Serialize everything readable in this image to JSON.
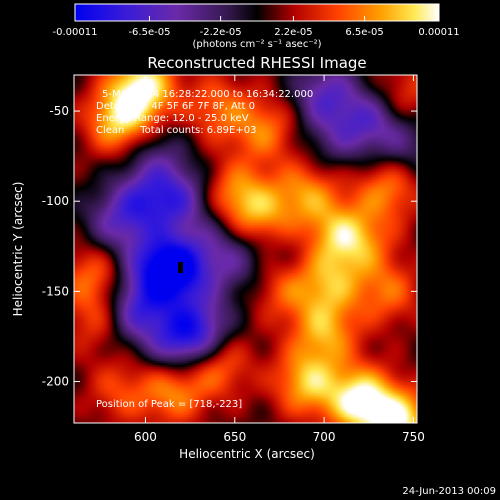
{
  "chart_data": {
    "type": "heatmap",
    "title": "Reconstructed RHESSI Image",
    "xlabel": "Heliocentric X (arcsec)",
    "ylabel": "Heliocentric Y (arcsec)",
    "xlim": [
      560,
      752
    ],
    "ylim": [
      -223,
      -30
    ],
    "x_ticks": [
      600,
      650,
      700,
      750
    ],
    "y_ticks": [
      -50,
      -100,
      -150,
      -200
    ],
    "colorbar": {
      "min": -0.00011,
      "max": 0.00011,
      "tick_values": [
        -0.00011,
        -6.5e-05,
        -2.2e-05,
        2.2e-05,
        6.5e-05,
        0.00011
      ],
      "tick_labels": [
        "-0.00011",
        "-6.5e-05",
        "-2.2e-05",
        "2.2e-05",
        "6.5e-05",
        "0.00011"
      ],
      "unit_label": "(photons cm⁻² s⁻¹ asec⁻²)",
      "colormap": "RHESSI (blue-purple-black-red-orange-yellow-white)"
    },
    "annotations": {
      "time": "5-Mar-2004 16:28:22.000 to 16:34:22.000",
      "detectors": "Detectors: 4F 5F 6F 7F 8F, Att 0",
      "energy": "Energy Range: 12.0 - 25.0 keV",
      "algorithm": "Clean     Total counts: 6.89E+03",
      "peak": "Position of Peak = [718,-223]"
    },
    "peak_position": [
      718,
      -223
    ],
    "blobs": [
      {
        "x": 598,
        "y": -36,
        "v": 0.9
      },
      {
        "x": 585,
        "y": -55,
        "v": 0.75
      },
      {
        "x": 640,
        "y": -48,
        "v": 0.45
      },
      {
        "x": 666,
        "y": -60,
        "v": 0.5
      },
      {
        "x": 650,
        "y": -96,
        "v": 0.55
      },
      {
        "x": 690,
        "y": -95,
        "v": 0.55
      },
      {
        "x": 665,
        "y": -108,
        "v": 0.5
      },
      {
        "x": 735,
        "y": -92,
        "v": 0.55
      },
      {
        "x": 720,
        "y": -122,
        "v": 0.45
      },
      {
        "x": 706,
        "y": -118,
        "v": 0.5
      },
      {
        "x": 702,
        "y": -145,
        "v": 0.55
      },
      {
        "x": 735,
        "y": -150,
        "v": 0.45
      },
      {
        "x": 676,
        "y": -148,
        "v": 0.4
      },
      {
        "x": 570,
        "y": -140,
        "v": 0.45
      },
      {
        "x": 572,
        "y": -165,
        "v": 0.35
      },
      {
        "x": 700,
        "y": -172,
        "v": 0.6
      },
      {
        "x": 690,
        "y": -200,
        "v": 0.7
      },
      {
        "x": 640,
        "y": -190,
        "v": 0.5
      },
      {
        "x": 615,
        "y": -205,
        "v": 0.55
      },
      {
        "x": 720,
        "y": -210,
        "v": 0.95
      },
      {
        "x": 742,
        "y": -222,
        "v": 0.85
      },
      {
        "x": 585,
        "y": -205,
        "v": 0.35
      },
      {
        "x": 745,
        "y": -40,
        "v": 0.35
      },
      {
        "x": 700,
        "y": -40,
        "v": -0.6
      },
      {
        "x": 725,
        "y": -55,
        "v": -0.55
      },
      {
        "x": 605,
        "y": -74,
        "v": -0.35
      },
      {
        "x": 618,
        "y": -98,
        "v": -0.6
      },
      {
        "x": 598,
        "y": -100,
        "v": -0.55
      },
      {
        "x": 605,
        "y": -135,
        "v": -0.55
      },
      {
        "x": 617,
        "y": -138,
        "v": -1.0
      },
      {
        "x": 582,
        "y": -112,
        "v": -0.45
      },
      {
        "x": 595,
        "y": -160,
        "v": -0.7
      },
      {
        "x": 630,
        "y": -170,
        "v": -0.65
      },
      {
        "x": 618,
        "y": -178,
        "v": -0.6
      },
      {
        "x": 650,
        "y": -135,
        "v": -0.35
      },
      {
        "x": 640,
        "y": -120,
        "v": -0.25
      },
      {
        "x": 705,
        "y": -66,
        "v": -0.3
      },
      {
        "x": 745,
        "y": -70,
        "v": -0.35
      },
      {
        "x": 680,
        "y": -128,
        "v": -0.15
      }
    ]
  },
  "footer": {
    "timestamp": "24-Jun-2013 00:09"
  }
}
